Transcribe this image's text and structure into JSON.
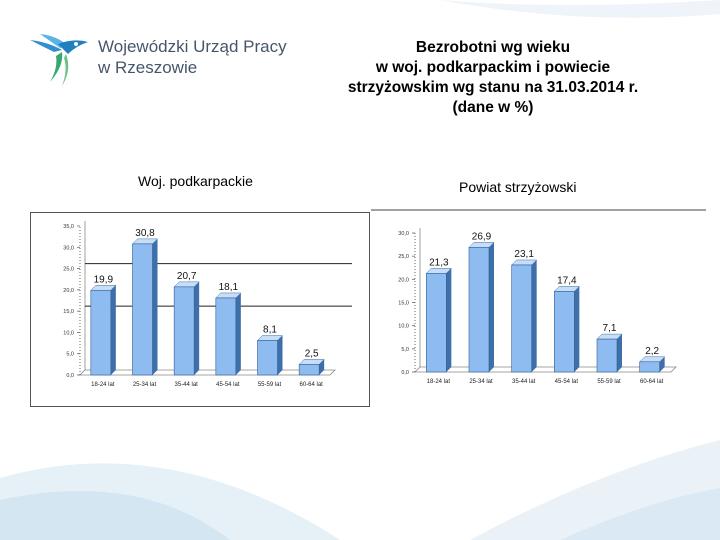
{
  "logo": {
    "line1": "Wojewódzki Urząd Pracy",
    "line2": "w Rzeszowie"
  },
  "title": {
    "line1": "Bezrobotni wg wieku",
    "line2": "w woj. podkarpackim i powiecie",
    "line3": "strzyżowskim wg stanu na 31.03.2014 r.",
    "line4": "(dane w %)"
  },
  "colors": {
    "bar": "#8ebbf0",
    "bar_side": "#3d6fa8",
    "bar_top": "#c8def8",
    "accent": "#5ba0d0",
    "deco": "#e3eef6"
  },
  "chart_data": [
    {
      "type": "bar",
      "title": "Woj. podkarpackie",
      "categories": [
        "18-24 lat",
        "25-34 lat",
        "35-44 lat",
        "45-54 lat",
        "55-59 lat",
        "60-64 lat"
      ],
      "values": [
        19.9,
        30.8,
        20.7,
        18.1,
        8.1,
        2.5
      ],
      "value_labels": [
        "19,9",
        "30,8",
        "20,7",
        "18,1",
        "8,1",
        "2,5"
      ],
      "yticks": [
        "0,0",
        "5,0",
        "10,0",
        "15,0",
        "20,0",
        "25,0",
        "30,0",
        "35,0"
      ],
      "ylim": [
        0,
        35
      ],
      "grid": false
    },
    {
      "type": "bar",
      "title": "Powiat strzyżowski",
      "categories": [
        "18-24 lat",
        "25-34 lat",
        "35-44 lat",
        "45-54 lat",
        "55-59 lat",
        "60-64 lat"
      ],
      "values": [
        21.3,
        26.9,
        23.1,
        17.4,
        7.1,
        2.2
      ],
      "value_labels": [
        "21,3",
        "26,9",
        "23,1",
        "17,4",
        "7,1",
        "2,2"
      ],
      "yticks": [
        "0,0",
        "5,0",
        "10,0",
        "15,0",
        "20,0",
        "25,0",
        "30,0"
      ],
      "ylim": [
        0,
        30
      ],
      "grid": false
    }
  ]
}
